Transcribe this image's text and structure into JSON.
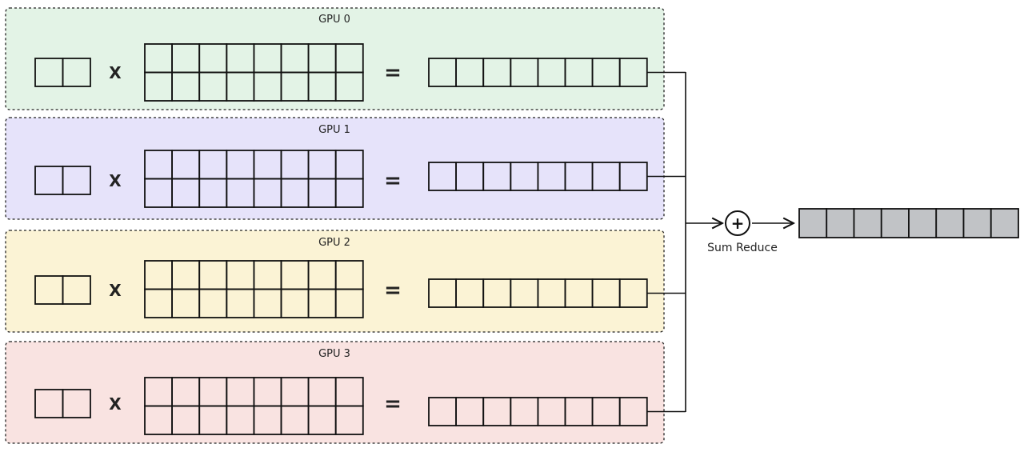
{
  "gpus": [
    {
      "label": "GPU 0",
      "color": "#e3f3e6"
    },
    {
      "label": "GPU 1",
      "color": "#e6e3fa"
    },
    {
      "label": "GPU 2",
      "color": "#fbf3d5"
    },
    {
      "label": "GPU 3",
      "color": "#f9e3e1"
    }
  ],
  "operators": {
    "multiply": "X",
    "equals": "="
  },
  "reduce": {
    "symbol": "+",
    "label": "Sum Reduce",
    "result_color": "#c1c3c6"
  },
  "input_vector_cells": 2,
  "matrix_shape": [
    2,
    8
  ],
  "output_vector_cells": 8
}
